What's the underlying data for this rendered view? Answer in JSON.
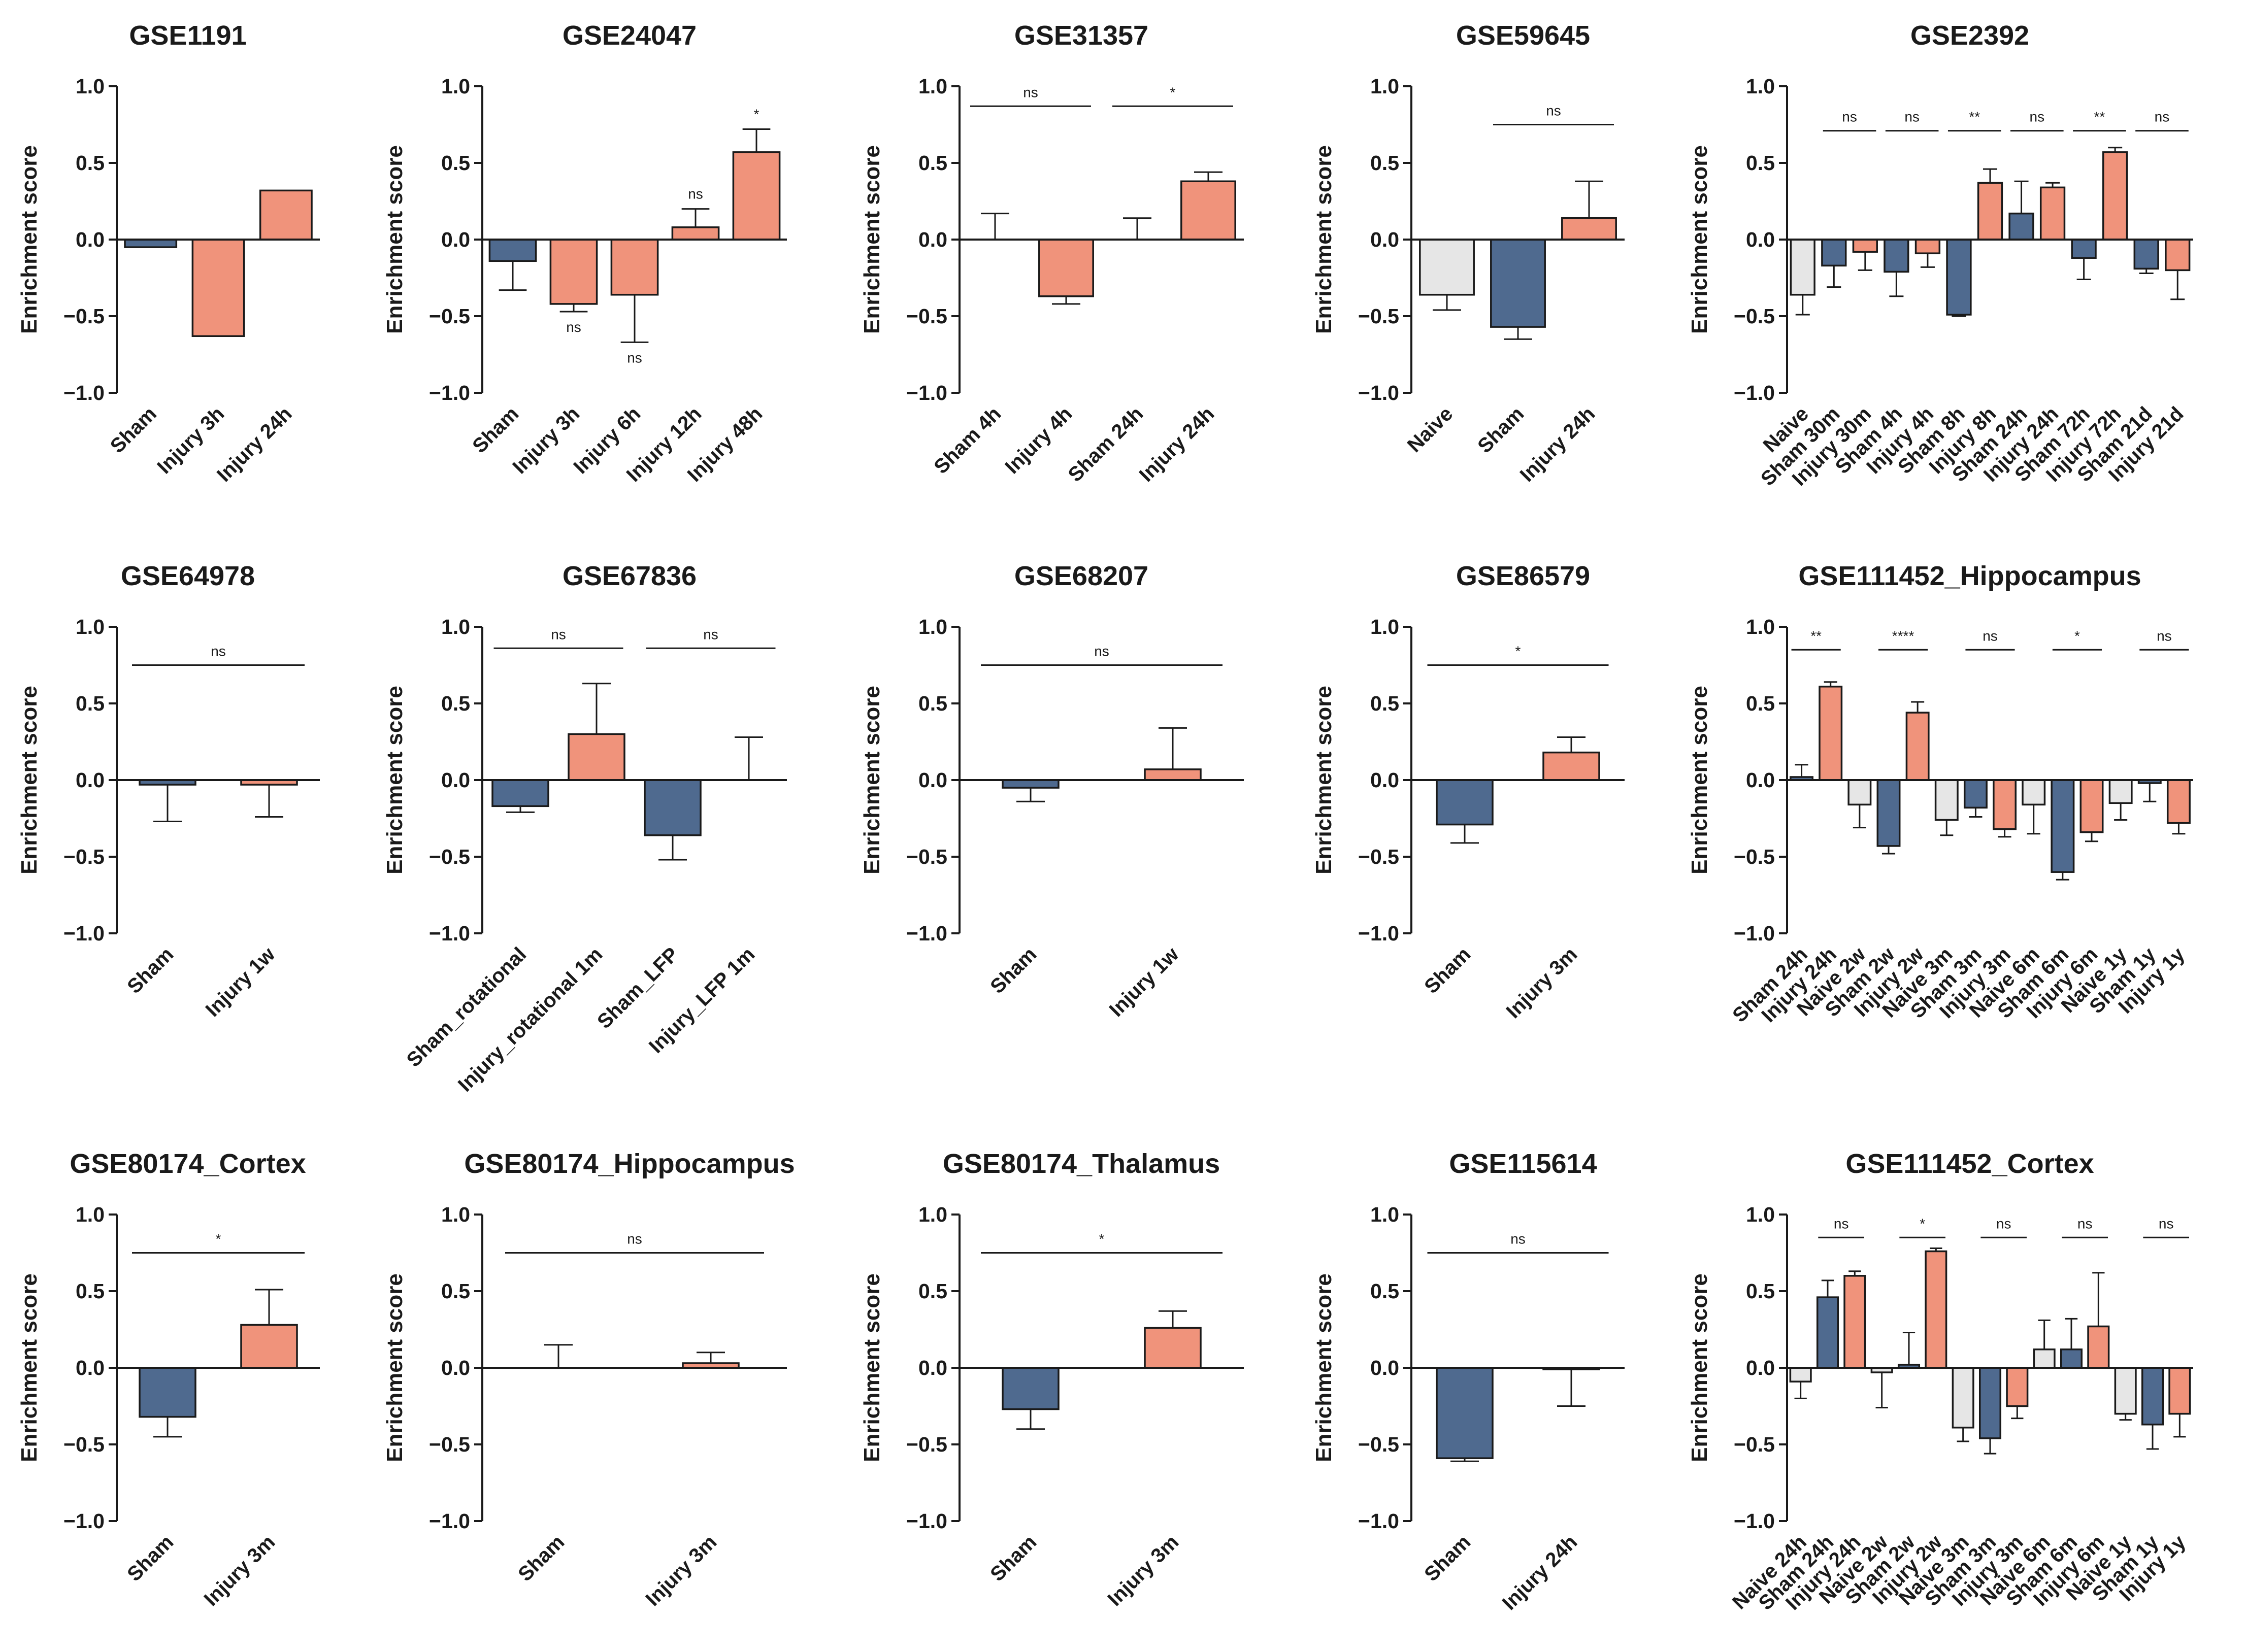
{
  "colors": {
    "sham": "#4f6a8f",
    "injury": "#f0937b",
    "naive": "#e6e6e6",
    "axis": "#1a1a1a"
  },
  "chart_data": [
    {
      "type": "bar",
      "title": "GSE1191",
      "ylabel": "Enrichment score",
      "ylim": [
        -1,
        1
      ],
      "yticks": [
        "-1.0",
        "-0.5",
        "0.0",
        "0.5",
        "1.0"
      ],
      "categories": [
        "Sham",
        "Injury 3h",
        "Injury 24h"
      ],
      "values": [
        -0.05,
        -0.63,
        0.32
      ],
      "errors": [
        null,
        null,
        null
      ],
      "groups": [
        "sham",
        "injury",
        "injury"
      ],
      "annotations": []
    },
    {
      "type": "bar",
      "title": "GSE24047",
      "ylabel": "Enrichment score",
      "ylim": [
        -1,
        1
      ],
      "yticks": [
        "-1.0",
        "-0.5",
        "0.0",
        "0.5",
        "1.0"
      ],
      "categories": [
        "Sham",
        "Injury 3h",
        "Injury 6h",
        "Injury 12h",
        "Injury 48h"
      ],
      "values": [
        -0.14,
        -0.42,
        -0.36,
        0.08,
        0.57
      ],
      "errors": [
        0.19,
        0.05,
        0.31,
        0.12,
        0.15
      ],
      "groups": [
        "sham",
        "injury",
        "injury",
        "injury",
        "injury"
      ],
      "annotations": [
        {
          "text": "ns",
          "bar": 1,
          "pos": "below"
        },
        {
          "text": "ns",
          "bar": 2,
          "pos": "below"
        },
        {
          "text": "ns",
          "bar": 3,
          "pos": "above"
        },
        {
          "text": "*",
          "bar": 4,
          "pos": "above"
        }
      ]
    },
    {
      "type": "bar",
      "title": "GSE31357",
      "ylabel": "Enrichment score",
      "ylim": [
        -1,
        1
      ],
      "yticks": [
        "-1.0",
        "-0.5",
        "0.0",
        "0.5",
        "1.0"
      ],
      "categories": [
        "Sham 4h",
        "Injury 4h",
        "Sham 24h",
        "Injury 24h"
      ],
      "values": [
        0.0,
        -0.37,
        0.0,
        0.38
      ],
      "errors": [
        0.17,
        0.05,
        0.14,
        0.06
      ],
      "groups": [
        "sham",
        "injury",
        "sham",
        "injury"
      ],
      "annotations": [
        {
          "text": "ns",
          "from": 0,
          "to": 1,
          "y": 0.87
        },
        {
          "text": "*",
          "from": 2,
          "to": 3,
          "y": 0.87
        }
      ]
    },
    {
      "type": "bar",
      "title": "GSE59645",
      "ylabel": "Enrichment score",
      "ylim": [
        -1,
        1
      ],
      "yticks": [
        "-1.0",
        "-0.5",
        "0.0",
        "0.5",
        "1.0"
      ],
      "categories": [
        "Naive",
        "Sham",
        "Injury 24h"
      ],
      "values": [
        -0.36,
        -0.57,
        0.14
      ],
      "errors": [
        0.1,
        0.08,
        0.24
      ],
      "groups": [
        "naive",
        "sham",
        "injury"
      ],
      "annotations": [
        {
          "text": "ns",
          "from": 1,
          "to": 2,
          "y": 0.75
        }
      ]
    },
    {
      "type": "bar",
      "title": "GSE2392",
      "ylabel": "Enrichment score",
      "ylim": [
        -1,
        1
      ],
      "yticks": [
        "-1.0",
        "-0.5",
        "0.0",
        "0.5",
        "1.0"
      ],
      "categories": [
        "Naive",
        "Sham 30m",
        "Injury 30m",
        "Sham 4h",
        "Injury 4h",
        "Sham 8h",
        "Injury 8h",
        "Sham 24h",
        "Injury 24h",
        "Sham 72h",
        "Injury 72h",
        "Sham 21d",
        "Injury 21d"
      ],
      "values": [
        -0.36,
        -0.17,
        -0.08,
        -0.21,
        -0.09,
        -0.49,
        0.37,
        0.17,
        0.34,
        -0.12,
        0.57,
        -0.19,
        -0.2
      ],
      "errors": [
        0.13,
        0.14,
        0.12,
        0.16,
        0.09,
        0.01,
        0.09,
        0.21,
        0.03,
        0.14,
        0.03,
        0.03,
        0.19
      ],
      "groups": [
        "naive",
        "sham",
        "injury",
        "sham",
        "injury",
        "sham",
        "injury",
        "sham",
        "injury",
        "sham",
        "injury",
        "sham",
        "injury"
      ],
      "annotations": [
        {
          "text": "ns",
          "from": 1,
          "to": 2,
          "y": 0.71
        },
        {
          "text": "ns",
          "from": 3,
          "to": 4,
          "y": 0.71
        },
        {
          "text": "**",
          "from": 5,
          "to": 6,
          "y": 0.71
        },
        {
          "text": "ns",
          "from": 7,
          "to": 8,
          "y": 0.71
        },
        {
          "text": "**",
          "from": 9,
          "to": 10,
          "y": 0.71
        },
        {
          "text": "ns",
          "from": 11,
          "to": 12,
          "y": 0.71
        }
      ]
    },
    {
      "type": "bar",
      "title": "GSE64978",
      "ylabel": "Enrichment score",
      "ylim": [
        -1,
        1
      ],
      "yticks": [
        "-1.0",
        "-0.5",
        "0.0",
        "0.5",
        "1.0"
      ],
      "categories": [
        "Sham",
        "Injury 1w"
      ],
      "values": [
        -0.03,
        -0.03
      ],
      "errors": [
        0.24,
        0.21
      ],
      "groups": [
        "sham",
        "injury"
      ],
      "annotations": [
        {
          "text": "ns",
          "from": 0,
          "to": 1,
          "y": 0.75
        }
      ]
    },
    {
      "type": "bar",
      "title": "GSE67836",
      "ylabel": "Enrichment score",
      "ylim": [
        -1,
        1
      ],
      "yticks": [
        "-1.0",
        "-0.5",
        "0.0",
        "0.5",
        "1.0"
      ],
      "categories": [
        "Sham_rotational",
        "Injury_rotational 1m",
        "Sham_LFP",
        "Injury_LFP 1m"
      ],
      "values": [
        -0.17,
        0.3,
        -0.36,
        0.0
      ],
      "errors": [
        0.04,
        0.33,
        0.16,
        0.28
      ],
      "groups": [
        "sham",
        "injury",
        "sham",
        "injury"
      ],
      "annotations": [
        {
          "text": "ns",
          "from": 0,
          "to": 1,
          "y": 0.86
        },
        {
          "text": "ns",
          "from": 2,
          "to": 3,
          "y": 0.86
        }
      ]
    },
    {
      "type": "bar",
      "title": "GSE68207",
      "ylabel": "Enrichment score",
      "ylim": [
        -1,
        1
      ],
      "yticks": [
        "-1.0",
        "-0.5",
        "0.0",
        "0.5",
        "1.0"
      ],
      "categories": [
        "Sham",
        "Injury 1w"
      ],
      "values": [
        -0.05,
        0.07
      ],
      "errors": [
        0.09,
        0.27
      ],
      "groups": [
        "sham",
        "injury"
      ],
      "annotations": [
        {
          "text": "ns",
          "from": 0,
          "to": 1,
          "y": 0.75
        }
      ]
    },
    {
      "type": "bar",
      "title": "GSE86579",
      "ylabel": "Enrichment score",
      "ylim": [
        -1,
        1
      ],
      "yticks": [
        "-1.0",
        "-0.5",
        "0.0",
        "0.5",
        "1.0"
      ],
      "categories": [
        "Sham",
        "Injury 3m"
      ],
      "values": [
        -0.29,
        0.18
      ],
      "errors": [
        0.12,
        0.1
      ],
      "groups": [
        "sham",
        "injury"
      ],
      "annotations": [
        {
          "text": "*",
          "from": 0,
          "to": 1,
          "y": 0.75
        }
      ]
    },
    {
      "type": "bar",
      "title": "GSE111452_Hippocampus",
      "ylabel": "Enrichment score",
      "ylim": [
        -1,
        1
      ],
      "yticks": [
        "-1.0",
        "-0.5",
        "0.0",
        "0.5",
        "1.0"
      ],
      "categories": [
        "Sham 24h",
        "Injury 24h",
        "Naive 2w",
        "Sham 2w",
        "Injury 2w",
        "Naive 3m",
        "Sham 3m",
        "Injury 3m",
        "Naive 6m",
        "Sham 6m",
        "Injury 6m",
        "Naive 1y",
        "Sham 1y",
        "Injury 1y"
      ],
      "values": [
        0.02,
        0.61,
        -0.16,
        -0.43,
        0.44,
        -0.26,
        -0.18,
        -0.32,
        -0.16,
        -0.6,
        -0.34,
        -0.15,
        -0.02,
        -0.28
      ],
      "errors": [
        0.08,
        0.03,
        0.15,
        0.05,
        0.07,
        0.1,
        0.06,
        0.05,
        0.19,
        0.05,
        0.06,
        0.11,
        0.12,
        0.07
      ],
      "groups": [
        "sham",
        "injury",
        "naive",
        "sham",
        "injury",
        "naive",
        "sham",
        "injury",
        "naive",
        "sham",
        "injury",
        "naive",
        "sham",
        "injury"
      ],
      "annotations": [
        {
          "text": "**",
          "from": 0,
          "to": 1,
          "y": 0.85
        },
        {
          "text": "****",
          "from": 3,
          "to": 4,
          "y": 0.85
        },
        {
          "text": "ns",
          "from": 6,
          "to": 7,
          "y": 0.85
        },
        {
          "text": "*",
          "from": 9,
          "to": 10,
          "y": 0.85
        },
        {
          "text": "ns",
          "from": 12,
          "to": 13,
          "y": 0.85
        }
      ]
    },
    {
      "type": "bar",
      "title": "GSE80174_Cortex",
      "ylabel": "Enrichment score",
      "ylim": [
        -1,
        1
      ],
      "yticks": [
        "-1.0",
        "-0.5",
        "0.0",
        "0.5",
        "1.0"
      ],
      "categories": [
        "Sham",
        "Injury 3m"
      ],
      "values": [
        -0.32,
        0.28
      ],
      "errors": [
        0.13,
        0.23
      ],
      "groups": [
        "sham",
        "injury"
      ],
      "annotations": [
        {
          "text": "*",
          "from": 0,
          "to": 1,
          "y": 0.75
        }
      ]
    },
    {
      "type": "bar",
      "title": "GSE80174_Hippocampus",
      "ylabel": "Enrichment score",
      "ylim": [
        -1,
        1
      ],
      "yticks": [
        "-1.0",
        "-0.5",
        "0.0",
        "0.5",
        "1.0"
      ],
      "categories": [
        "Sham",
        "Injury 3m"
      ],
      "values": [
        0.0,
        0.03
      ],
      "errors": [
        0.15,
        0.07
      ],
      "groups": [
        "sham",
        "injury"
      ],
      "annotations": [
        {
          "text": "ns",
          "from": 0,
          "to": 1,
          "y": 0.75
        }
      ]
    },
    {
      "type": "bar",
      "title": "GSE80174_Thalamus",
      "ylabel": "Enrichment score",
      "ylim": [
        -1,
        1
      ],
      "yticks": [
        "-1.0",
        "-0.5",
        "0.0",
        "0.5",
        "1.0"
      ],
      "categories": [
        "Sham",
        "Injury 3m"
      ],
      "values": [
        -0.27,
        0.26
      ],
      "errors": [
        0.13,
        0.11
      ],
      "groups": [
        "sham",
        "injury"
      ],
      "annotations": [
        {
          "text": "*",
          "from": 0,
          "to": 1,
          "y": 0.75
        }
      ]
    },
    {
      "type": "bar",
      "title": "GSE115614",
      "ylabel": "Enrichment score",
      "ylim": [
        -1,
        1
      ],
      "yticks": [
        "-1.0",
        "-0.5",
        "0.0",
        "0.5",
        "1.0"
      ],
      "categories": [
        "Sham",
        "Injury 24h"
      ],
      "values": [
        -0.59,
        -0.01
      ],
      "errors": [
        0.02,
        0.24
      ],
      "groups": [
        "sham",
        "injury"
      ],
      "annotations": [
        {
          "text": "ns",
          "from": 0,
          "to": 1,
          "y": 0.75
        }
      ]
    },
    {
      "type": "bar",
      "title": "GSE111452_Cortex",
      "ylabel": "Enrichment score",
      "ylim": [
        -1,
        1
      ],
      "yticks": [
        "-1.0",
        "-0.5",
        "0.0",
        "0.5",
        "1.0"
      ],
      "categories": [
        "Naive 24h",
        "Sham 24h",
        "Injury 24h",
        "Naive 2w",
        "Sham 2w",
        "Injury 2w",
        "Naive 3m",
        "Sham 3m",
        "Injury 3m",
        "Naive 6m",
        "Sham 6m",
        "Injury 6m",
        "Naive 1y",
        "Sham 1y",
        "Injury 1y"
      ],
      "values": [
        -0.09,
        0.46,
        0.6,
        -0.03,
        0.02,
        0.76,
        -0.39,
        -0.46,
        -0.25,
        0.12,
        0.12,
        0.27,
        -0.3,
        -0.37,
        -0.3
      ],
      "errors": [
        0.11,
        0.11,
        0.03,
        0.23,
        0.21,
        0.02,
        0.09,
        0.1,
        0.08,
        0.19,
        0.2,
        0.35,
        0.04,
        0.16,
        0.15
      ],
      "groups": [
        "naive",
        "sham",
        "injury",
        "naive",
        "sham",
        "injury",
        "naive",
        "sham",
        "injury",
        "naive",
        "sham",
        "injury",
        "naive",
        "sham",
        "injury"
      ],
      "annotations": [
        {
          "text": "ns",
          "from": 1,
          "to": 2,
          "y": 0.85
        },
        {
          "text": "*",
          "from": 4,
          "to": 5,
          "y": 0.85
        },
        {
          "text": "ns",
          "from": 7,
          "to": 8,
          "y": 0.85
        },
        {
          "text": "ns",
          "from": 10,
          "to": 11,
          "y": 0.85
        },
        {
          "text": "ns",
          "from": 13,
          "to": 14,
          "y": 0.85
        }
      ]
    }
  ]
}
